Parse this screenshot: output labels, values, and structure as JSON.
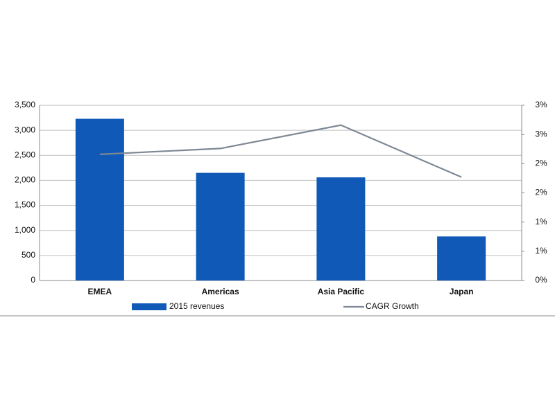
{
  "chart_data": {
    "type": "bar_line",
    "categories": [
      "EMEA",
      "Americas",
      "Asia Pacific",
      "Japan"
    ],
    "series": [
      {
        "name": "2015 revenues",
        "type": "bar",
        "color": "#1059b7",
        "values": [
          3230,
          2150,
          2060,
          880
        ]
      },
      {
        "name": "CAGR Growth",
        "type": "line",
        "axis": "y2",
        "color": "#7d8894",
        "values": [
          2.16,
          2.26,
          2.66,
          1.77
        ]
      }
    ],
    "ylim": [
      0,
      3500
    ],
    "yticks": [
      0,
      500,
      {
        "value": 1000,
        "label": "1,000"
      },
      {
        "value": 1500,
        "label": "1,500"
      },
      {
        "value": 2000,
        "label": "2,000"
      },
      {
        "value": 2500,
        "label": "2,500"
      },
      {
        "value": 3000,
        "label": "3,000"
      },
      {
        "value": 3500,
        "label": "3,500"
      }
    ],
    "y2lim": [
      0,
      3
    ],
    "y2ticks": [
      {
        "value": 0,
        "label": "0%"
      },
      {
        "value": 0.5,
        "label": "1%"
      },
      {
        "value": 1,
        "label": "1%"
      },
      {
        "value": 1.5,
        "label": "2%"
      },
      {
        "value": 2,
        "label": "2%"
      },
      {
        "value": 2.5,
        "label": "3%"
      },
      {
        "value": 3,
        "label": "3%"
      }
    ],
    "grid": true,
    "legend": "bottom"
  }
}
